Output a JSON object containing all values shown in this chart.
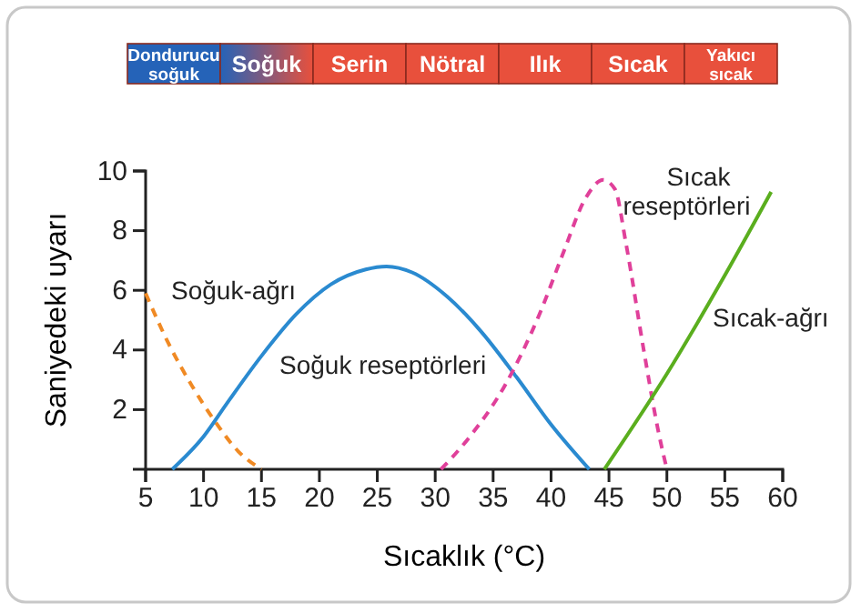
{
  "chart_data": {
    "type": "line",
    "xlabel": "Sıcaklık (°C)",
    "ylabel": "Saniyedeki uyarı",
    "xlim": [
      5,
      60
    ],
    "xticks": [
      5,
      10,
      15,
      20,
      25,
      30,
      35,
      40,
      45,
      50,
      55,
      60
    ],
    "ylim": [
      0,
      10
    ],
    "yticks": [
      2,
      4,
      6,
      8,
      10
    ],
    "grid": false,
    "marker": "none",
    "annotations": [
      "Dondurucu soğuk",
      "Soğuk",
      "Serin",
      "Nötral",
      "Ilık",
      "Sıcak",
      "Yakıcı sıcak"
    ],
    "series": [
      {
        "name": "Soğuk-ağrı",
        "color": "#f08a24",
        "line_style": "dashed",
        "x": [
          5,
          7,
          9,
          11,
          13,
          15
        ],
        "values": [
          5.9,
          4.2,
          2.8,
          1.6,
          0.6,
          0
        ]
      },
      {
        "name": "Soğuk reseptörleri",
        "color": "#2a8ad0",
        "line_style": "solid",
        "x": [
          7.3,
          10,
          12,
          15,
          18,
          21,
          24,
          25.8,
          28,
          31,
          34,
          37,
          40,
          43.3
        ],
        "values": [
          0,
          1.1,
          2.2,
          3.8,
          5.2,
          6.2,
          6.7,
          6.8,
          6.6,
          5.8,
          4.6,
          3.1,
          1.5,
          0
        ]
      },
      {
        "name": "Sıcak reseptörleri",
        "color": "#e0409a",
        "line_style": "dashed",
        "x": [
          30.5,
          33,
          36,
          39,
          41,
          43,
          44.5,
          45.5,
          46.5,
          48,
          49.3,
          50
        ],
        "values": [
          0,
          1.1,
          2.8,
          5.2,
          7.2,
          9.1,
          9.7,
          9.4,
          7.5,
          4,
          1.2,
          0
        ]
      },
      {
        "name": "Sıcak-ağrı",
        "color": "#5aae1e",
        "line_style": "solid",
        "x": [
          44.6,
          50,
          55,
          59
        ],
        "values": [
          0,
          3.2,
          6.5,
          9.3
        ]
      }
    ]
  }
}
